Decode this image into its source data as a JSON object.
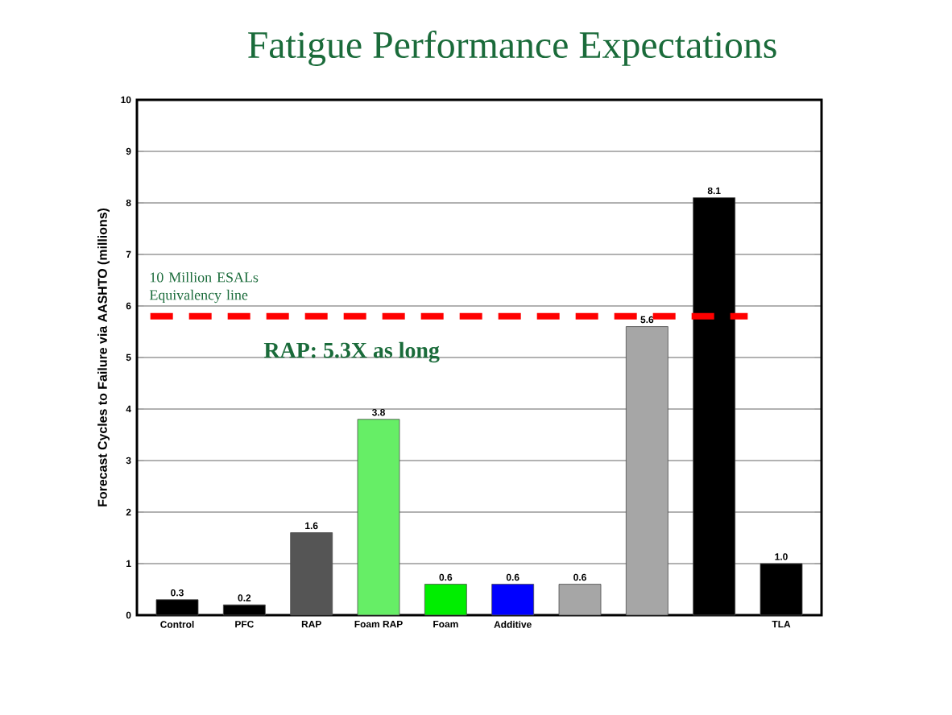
{
  "chart_data": {
    "type": "bar",
    "title": "Fatigue Performance Expectations",
    "ylabel": "Forecast Cycles to Failure via AASHTO (millions)",
    "categories": [
      "Control",
      "PFC",
      "RAP",
      "Foam RAP",
      "Foam",
      "Additive",
      null,
      null,
      null,
      "TLA"
    ],
    "values": [
      0.3,
      0.2,
      1.6,
      3.8,
      0.6,
      0.6,
      0.6,
      5.6,
      8.1,
      1.0
    ],
    "value_labels": [
      "0.3",
      "0.2",
      "1.6",
      "3.8",
      "0.6",
      "0.6",
      "0.6",
      "5.6",
      "8.1",
      "1.0"
    ],
    "colors": [
      "#000000",
      "#000000",
      "#555555",
      "#66ee66",
      "#00ee00",
      "#0000ff",
      "#a6a6a6",
      "#a6a6a6",
      "#000000",
      "#000000"
    ],
    "ylim": [
      0,
      10
    ],
    "yticks": [
      0,
      1,
      2,
      3,
      4,
      5,
      6,
      7,
      8,
      9,
      10
    ],
    "grid": "y",
    "ref_lines": [
      {
        "axis": "y",
        "value": 5.8,
        "label": "10 Million ESALs Equivalency line",
        "color": "#ff0000",
        "line_style": "dashed"
      }
    ],
    "annotations": [
      "RAP: 5.3X as long"
    ]
  }
}
